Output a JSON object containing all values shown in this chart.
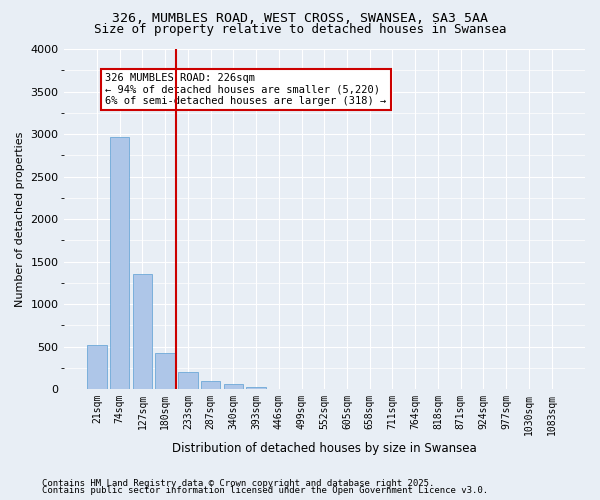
{
  "title_line1": "326, MUMBLES ROAD, WEST CROSS, SWANSEA, SA3 5AA",
  "title_line2": "Size of property relative to detached houses in Swansea",
  "xlabel": "Distribution of detached houses by size in Swansea",
  "ylabel": "Number of detached properties",
  "categories": [
    "21sqm",
    "74sqm",
    "127sqm",
    "180sqm",
    "233sqm",
    "287sqm",
    "340sqm",
    "393sqm",
    "446sqm",
    "499sqm",
    "552sqm",
    "605sqm",
    "658sqm",
    "711sqm",
    "764sqm",
    "818sqm",
    "871sqm",
    "924sqm",
    "977sqm",
    "1030sqm",
    "1083sqm"
  ],
  "values": [
    520,
    2960,
    1350,
    430,
    195,
    100,
    60,
    30,
    0,
    0,
    0,
    0,
    0,
    0,
    0,
    0,
    0,
    0,
    0,
    0,
    0
  ],
  "bar_color": "#aec6e8",
  "bar_edge_color": "#5a9fd4",
  "vline_x": 3,
  "vline_color": "#cc0000",
  "annotation_text": "326 MUMBLES ROAD: 226sqm\n← 94% of detached houses are smaller (5,220)\n6% of semi-detached houses are larger (318) →",
  "annotation_box_color": "#ffffff",
  "annotation_box_edge": "#cc0000",
  "ylim": [
    0,
    4000
  ],
  "yticks": [
    0,
    500,
    1000,
    1500,
    2000,
    2500,
    3000,
    3500,
    4000
  ],
  "background_color": "#e8eef5",
  "plot_bg_color": "#e8eef5",
  "grid_color": "#ffffff",
  "footnote_line1": "Contains HM Land Registry data © Crown copyright and database right 2025.",
  "footnote_line2": "Contains public sector information licensed under the Open Government Licence v3.0."
}
